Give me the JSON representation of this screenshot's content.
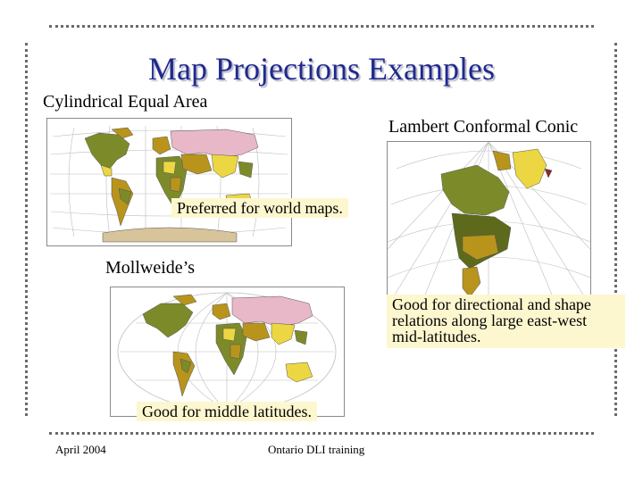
{
  "slide": {
    "title": "Map Projections Examples",
    "footer_left": "April 2004",
    "footer_center": "Ontario DLI training"
  },
  "projections": {
    "cylindrical": {
      "label": "Cylindrical Equal Area",
      "note": "Preferred for world maps."
    },
    "lambert": {
      "label": "Lambert Conformal Conic",
      "note_lines": [
        "Good for directional and shape",
        "relations along large east-west",
        "mid-latitudes."
      ]
    },
    "mollweide": {
      "label": "Mollweide’s",
      "note": "Good for middle latitudes."
    }
  },
  "colors": {
    "title": "#1f2a8c",
    "border_dots": "#6a6a6a",
    "note_bg": "#fdf7cf",
    "olive": "#7d8a2a",
    "olive_dark": "#5d6a1c",
    "ochre": "#b8941c",
    "pink": "#e9b8c8",
    "yellow": "#ecd742",
    "tan": "#d7c49a"
  }
}
